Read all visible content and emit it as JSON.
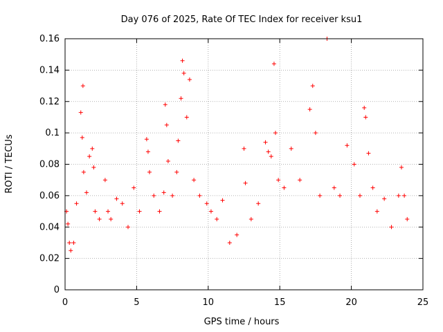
{
  "chart_data": {
    "type": "scatter",
    "title": "Day 076 of 2025, Rate Of TEC Index for receiver ksu1",
    "xlabel": "GPS time / hours",
    "ylabel": "ROTI / TECUs",
    "xlim": [
      0,
      25
    ],
    "ylim": [
      0,
      0.16
    ],
    "x_ticks": [
      "0",
      "5",
      "10",
      "15",
      "20",
      "25"
    ],
    "y_ticks": [
      "0",
      "0.02",
      "0.04",
      "0.06",
      "0.08",
      "0.1",
      "0.12",
      "0.14",
      "0.16"
    ],
    "grid": true,
    "marker": "+",
    "color": "#ff0000",
    "series": [
      {
        "x": [
          0.1,
          0.2,
          0.3,
          0.4,
          0.6,
          0.8,
          1.1,
          1.2,
          1.25,
          1.3,
          1.5,
          1.7,
          1.9,
          2.0,
          2.1,
          2.4,
          2.8,
          3.0,
          3.2,
          3.6,
          4.0,
          4.4,
          4.8,
          5.2,
          5.7,
          5.8,
          5.9,
          6.2,
          6.6,
          6.9,
          7.0,
          7.1,
          7.2,
          7.5,
          7.8,
          7.9,
          8.1,
          8.2,
          8.3,
          8.5,
          8.7,
          9.0,
          9.4,
          9.9,
          10.2,
          10.6,
          11.0,
          11.5,
          12.0,
          12.5,
          12.6,
          13.0,
          13.5,
          14.0,
          14.2,
          14.4,
          14.6,
          14.7,
          14.9,
          15.3,
          15.8,
          16.4,
          17.1,
          17.3,
          17.5,
          17.8,
          18.3,
          18.8,
          19.2,
          19.7,
          20.2,
          20.6,
          20.9,
          21.0,
          21.2,
          21.5,
          21.8,
          22.3,
          22.8,
          23.3,
          23.5,
          23.7,
          23.9
        ],
        "y": [
          0.05,
          0.042,
          0.03,
          0.025,
          0.03,
          0.055,
          0.113,
          0.097,
          0.13,
          0.075,
          0.062,
          0.085,
          0.09,
          0.078,
          0.05,
          0.045,
          0.07,
          0.05,
          0.045,
          0.058,
          0.055,
          0.04,
          0.065,
          0.05,
          0.096,
          0.088,
          0.075,
          0.06,
          0.05,
          0.062,
          0.118,
          0.105,
          0.082,
          0.06,
          0.075,
          0.095,
          0.122,
          0.146,
          0.138,
          0.11,
          0.134,
          0.07,
          0.06,
          0.055,
          0.05,
          0.045,
          0.057,
          0.03,
          0.035,
          0.09,
          0.068,
          0.045,
          0.055,
          0.094,
          0.088,
          0.085,
          0.144,
          0.1,
          0.07,
          0.065,
          0.09,
          0.07,
          0.115,
          0.13,
          0.1,
          0.06,
          0.16,
          0.065,
          0.06,
          0.092,
          0.08,
          0.06,
          0.116,
          0.11,
          0.087,
          0.065,
          0.05,
          0.058,
          0.04,
          0.06,
          0.078,
          0.06,
          0.045
        ]
      }
    ]
  }
}
